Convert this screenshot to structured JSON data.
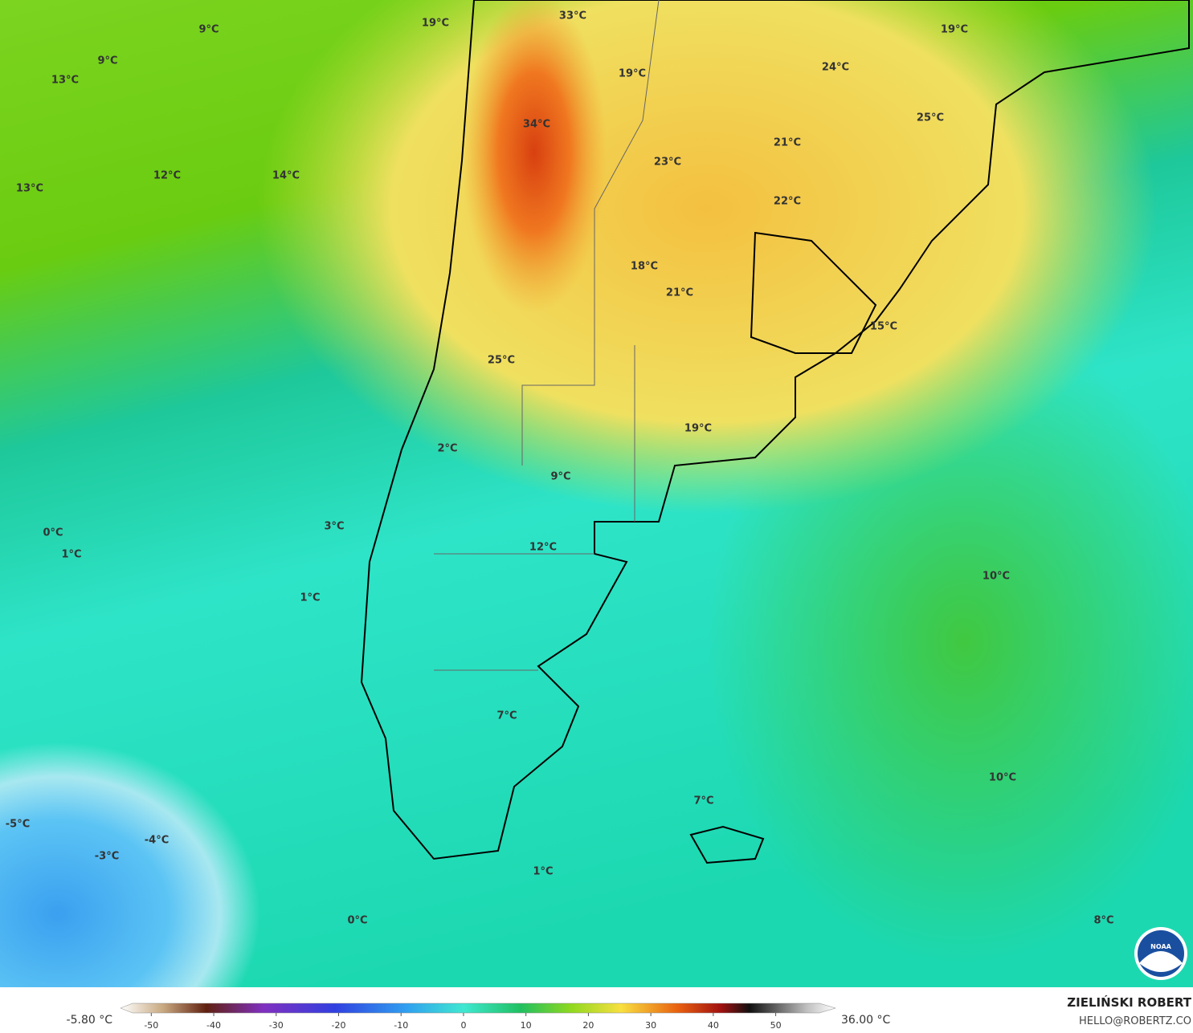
{
  "map": {
    "labels": [
      "33°C",
      "19°C",
      "9°C",
      "9°C",
      "13°C",
      "19°C",
      "19°C",
      "24°C",
      "25°C",
      "34°C",
      "21°C",
      "23°C",
      "12°C",
      "14°C",
      "13°C",
      "22°C",
      "18°C",
      "21°C",
      "15°C",
      "25°C",
      "19°C",
      "2°C",
      "9°C",
      "0°C",
      "3°C",
      "1°C",
      "12°C",
      "10°C",
      "1°C",
      "7°C",
      "10°C",
      "7°C",
      "-5°C",
      "-4°C",
      "-3°C",
      "1°C",
      "0°C",
      "8°C"
    ],
    "colorbar": {
      "min_label": "-5.80 °C",
      "max_label": "36.00 °C",
      "range": [
        -53,
        57
      ],
      "ticks": [
        -50,
        -40,
        -30,
        -20,
        -10,
        0,
        10,
        20,
        30,
        40,
        50
      ]
    },
    "credit": {
      "name": "ZIELIŃSKI ROBERT",
      "contact": "HELLO@ROBERTZ.CO",
      "logo": "NOAA"
    }
  }
}
